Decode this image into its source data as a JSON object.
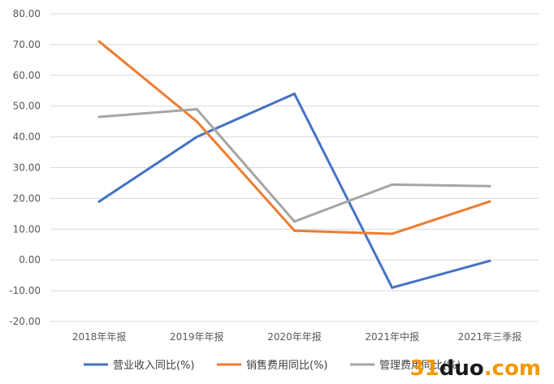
{
  "chart_data": {
    "type": "line",
    "categories": [
      "2018年年报",
      "2019年年报",
      "2020年年报",
      "2021年中报",
      "2021年三季报"
    ],
    "ylim": [
      -20,
      80
    ],
    "yticks": [
      "80.00",
      "70.00",
      "60.00",
      "50.00",
      "40.00",
      "30.00",
      "20.00",
      "10.00",
      "0.00",
      "-10.00",
      "-20.00"
    ],
    "grid": true,
    "legend_position": "bottom",
    "series": [
      {
        "name": "营业收入同比(%)",
        "color": "#4472c4",
        "values": [
          19.0,
          40.0,
          54.0,
          -9.0,
          -0.3
        ]
      },
      {
        "name": "销售费用同比(%)",
        "color": "#ed7d31",
        "values": [
          71.0,
          45.0,
          9.5,
          8.5,
          19.0
        ]
      },
      {
        "name": "管理费用同比(%)",
        "color": "#a5a5a5",
        "values": [
          46.5,
          49.0,
          12.5,
          24.5,
          24.0
        ]
      }
    ]
  },
  "watermark": {
    "part1": "31",
    "part2": "duo",
    "part3": ".com"
  }
}
